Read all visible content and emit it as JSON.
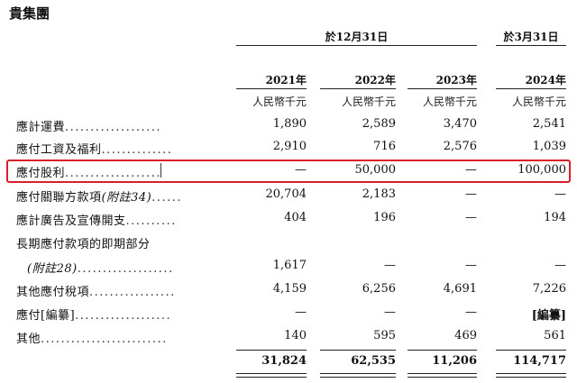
{
  "company": "貴集團",
  "periods": {
    "dec31": "於12月31日",
    "mar31": "於3月31日"
  },
  "years": [
    "2021年",
    "2022年",
    "2023年",
    "2024年"
  ],
  "unit": "人民幣千元",
  "rows": [
    {
      "label": "應計運費",
      "dots": "...................",
      "values": [
        "1,890",
        "2,589",
        "3,470",
        "2,541"
      ]
    },
    {
      "label": "應付工資及福利",
      "dots": "..............",
      "values": [
        "2,910",
        "716",
        "2,576",
        "1,039"
      ]
    },
    {
      "label": "應付股利",
      "dots": "...................",
      "values": [
        "—",
        "50,000",
        "—",
        "100,000"
      ]
    },
    {
      "label": "應付關聯方款項",
      "label_note": "(附註34)",
      "dots": "......",
      "values": [
        "20,704",
        "2,183",
        "—",
        "—"
      ]
    },
    {
      "label": "應計廣告及宣傳開支",
      "dots": "..........",
      "values": [
        "404",
        "196",
        "—",
        "194"
      ]
    },
    {
      "label": "長期應付款項的即期部分",
      "dots": "",
      "values": [
        "",
        "",
        "",
        ""
      ]
    },
    {
      "label": "",
      "label_note": "(附註28)",
      "dots": "...................",
      "values": [
        "1,617",
        "—",
        "—",
        "—"
      ]
    },
    {
      "label": "其他應付稅項",
      "dots": ".................",
      "values": [
        "4,159",
        "6,256",
        "4,691",
        "7,226"
      ]
    },
    {
      "label": "應付[編纂]",
      "dots": "...................",
      "values": [
        "—",
        "—",
        "—",
        "[編纂]"
      ]
    },
    {
      "label": "其他",
      "dots": ".........................",
      "values": [
        "140",
        "595",
        "469",
        "561"
      ]
    }
  ],
  "totals": [
    "31,824",
    "62,535",
    "11,206",
    "114,717"
  ]
}
